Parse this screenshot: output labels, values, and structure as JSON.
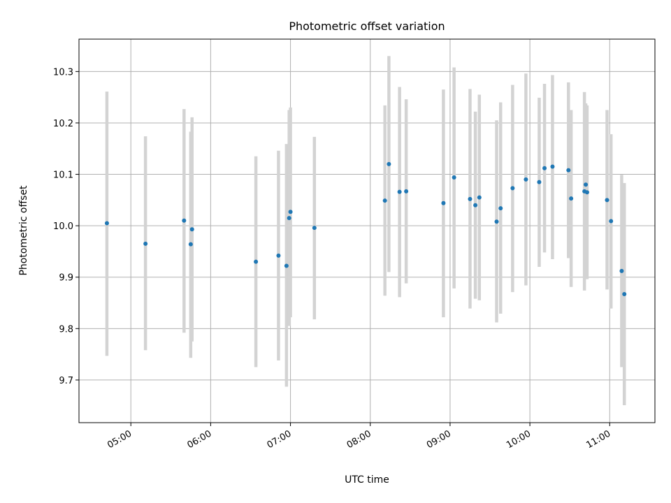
{
  "chart_data": {
    "type": "scatter",
    "title": "Photometric offset variation",
    "xlabel": "UTC time",
    "ylabel": "Photometric offset",
    "x_axis_type": "time",
    "xlim": [
      "04:21",
      "11:34"
    ],
    "ylim": [
      9.617,
      10.363
    ],
    "x_ticks": [
      "05:00",
      "06:00",
      "07:00",
      "08:00",
      "09:00",
      "10:00",
      "11:00"
    ],
    "y_ticks": [
      "9.7",
      "9.8",
      "9.9",
      "10.0",
      "10.1",
      "10.2",
      "10.3"
    ],
    "grid": true,
    "marker_color": "#1f77b4",
    "errorbar_color": "#d3d3d3",
    "points": [
      {
        "x": "04:42",
        "y": 10.005,
        "low": 9.747,
        "high": 10.261
      },
      {
        "x": "05:11",
        "y": 9.965,
        "low": 9.758,
        "high": 10.174
      },
      {
        "x": "05:40",
        "y": 10.01,
        "low": 9.792,
        "high": 10.227
      },
      {
        "x": "05:45",
        "y": 9.964,
        "low": 9.743,
        "high": 10.183
      },
      {
        "x": "05:46",
        "y": 9.993,
        "low": 9.775,
        "high": 10.211
      },
      {
        "x": "06:34",
        "y": 9.93,
        "low": 9.725,
        "high": 10.135
      },
      {
        "x": "06:51",
        "y": 9.942,
        "low": 9.738,
        "high": 10.146
      },
      {
        "x": "06:57",
        "y": 9.922,
        "low": 9.687,
        "high": 10.159
      },
      {
        "x": "06:59",
        "y": 10.015,
        "low": 9.805,
        "high": 10.225
      },
      {
        "x": "07:00",
        "y": 10.027,
        "low": 9.822,
        "high": 10.23
      },
      {
        "x": "07:18",
        "y": 9.996,
        "low": 9.818,
        "high": 10.173
      },
      {
        "x": "08:11",
        "y": 10.049,
        "low": 9.864,
        "high": 10.234
      },
      {
        "x": "08:14",
        "y": 10.12,
        "low": 9.91,
        "high": 10.33
      },
      {
        "x": "08:22",
        "y": 10.066,
        "low": 9.861,
        "high": 10.27
      },
      {
        "x": "08:27",
        "y": 10.067,
        "low": 9.888,
        "high": 10.246
      },
      {
        "x": "08:55",
        "y": 10.044,
        "low": 9.822,
        "high": 10.265
      },
      {
        "x": "09:03",
        "y": 10.094,
        "low": 9.878,
        "high": 10.308
      },
      {
        "x": "09:15",
        "y": 10.052,
        "low": 9.839,
        "high": 10.266
      },
      {
        "x": "09:19",
        "y": 10.04,
        "low": 9.858,
        "high": 10.222
      },
      {
        "x": "09:22",
        "y": 10.055,
        "low": 9.855,
        "high": 10.255
      },
      {
        "x": "09:35",
        "y": 10.008,
        "low": 9.812,
        "high": 10.205
      },
      {
        "x": "09:38",
        "y": 10.034,
        "low": 9.829,
        "high": 10.24
      },
      {
        "x": "09:47",
        "y": 10.073,
        "low": 9.871,
        "high": 10.274
      },
      {
        "x": "09:57",
        "y": 10.09,
        "low": 9.884,
        "high": 10.296
      },
      {
        "x": "10:07",
        "y": 10.085,
        "low": 9.92,
        "high": 10.249
      },
      {
        "x": "10:11",
        "y": 10.112,
        "low": 9.948,
        "high": 10.276
      },
      {
        "x": "10:17",
        "y": 10.115,
        "low": 9.935,
        "high": 10.293
      },
      {
        "x": "10:29",
        "y": 10.108,
        "low": 9.937,
        "high": 10.279
      },
      {
        "x": "10:31",
        "y": 10.053,
        "low": 9.881,
        "high": 10.225
      },
      {
        "x": "10:41",
        "y": 10.067,
        "low": 9.874,
        "high": 10.26
      },
      {
        "x": "10:42",
        "y": 10.08,
        "low": 9.923,
        "high": 10.238
      },
      {
        "x": "10:43",
        "y": 10.065,
        "low": 9.896,
        "high": 10.234
      },
      {
        "x": "10:58",
        "y": 10.05,
        "low": 9.876,
        "high": 10.225
      },
      {
        "x": "11:01",
        "y": 10.009,
        "low": 9.839,
        "high": 10.178
      },
      {
        "x": "11:09",
        "y": 9.912,
        "low": 9.725,
        "high": 10.099
      },
      {
        "x": "11:11",
        "y": 9.867,
        "low": 9.651,
        "high": 10.083
      }
    ]
  }
}
